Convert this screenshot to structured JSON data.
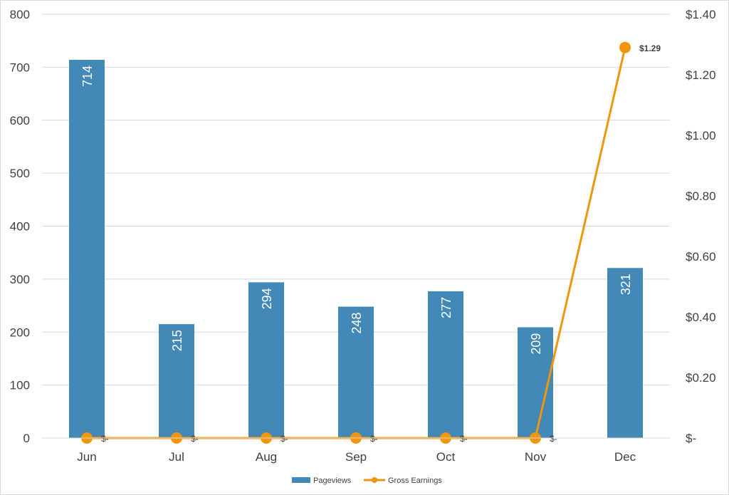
{
  "chart_data": {
    "type": "bar",
    "categories": [
      "Jun",
      "Jul",
      "Aug",
      "Sep",
      "Oct",
      "Nov",
      "Dec"
    ],
    "series": [
      {
        "name": "Pageviews",
        "type": "bar",
        "axis": "left",
        "values": [
          714,
          215,
          294,
          248,
          277,
          209,
          321
        ],
        "labels": [
          "714",
          "215",
          "294",
          "248",
          "277",
          "209",
          "321"
        ],
        "color": "#4389B8"
      },
      {
        "name": "Gross Earnings",
        "type": "line",
        "axis": "right",
        "values": [
          0,
          0,
          0,
          0,
          0,
          0,
          1.29
        ],
        "labels": [
          "$-",
          "$-",
          "$-",
          "$-",
          "$-",
          "$-",
          "$1.29"
        ],
        "color": "#F0960C"
      }
    ],
    "left_axis": {
      "ylim": [
        0,
        800
      ],
      "ticks": [
        "0",
        "100",
        "200",
        "300",
        "400",
        "500",
        "600",
        "700",
        "800"
      ]
    },
    "right_axis": {
      "ylim": [
        0,
        1.4
      ],
      "ticks": [
        "$-",
        "$0.20",
        "$0.40",
        "$0.60",
        "$0.80",
        "$1.00",
        "$1.20",
        "$1.40"
      ]
    },
    "grid": true,
    "legend": "bottom"
  }
}
